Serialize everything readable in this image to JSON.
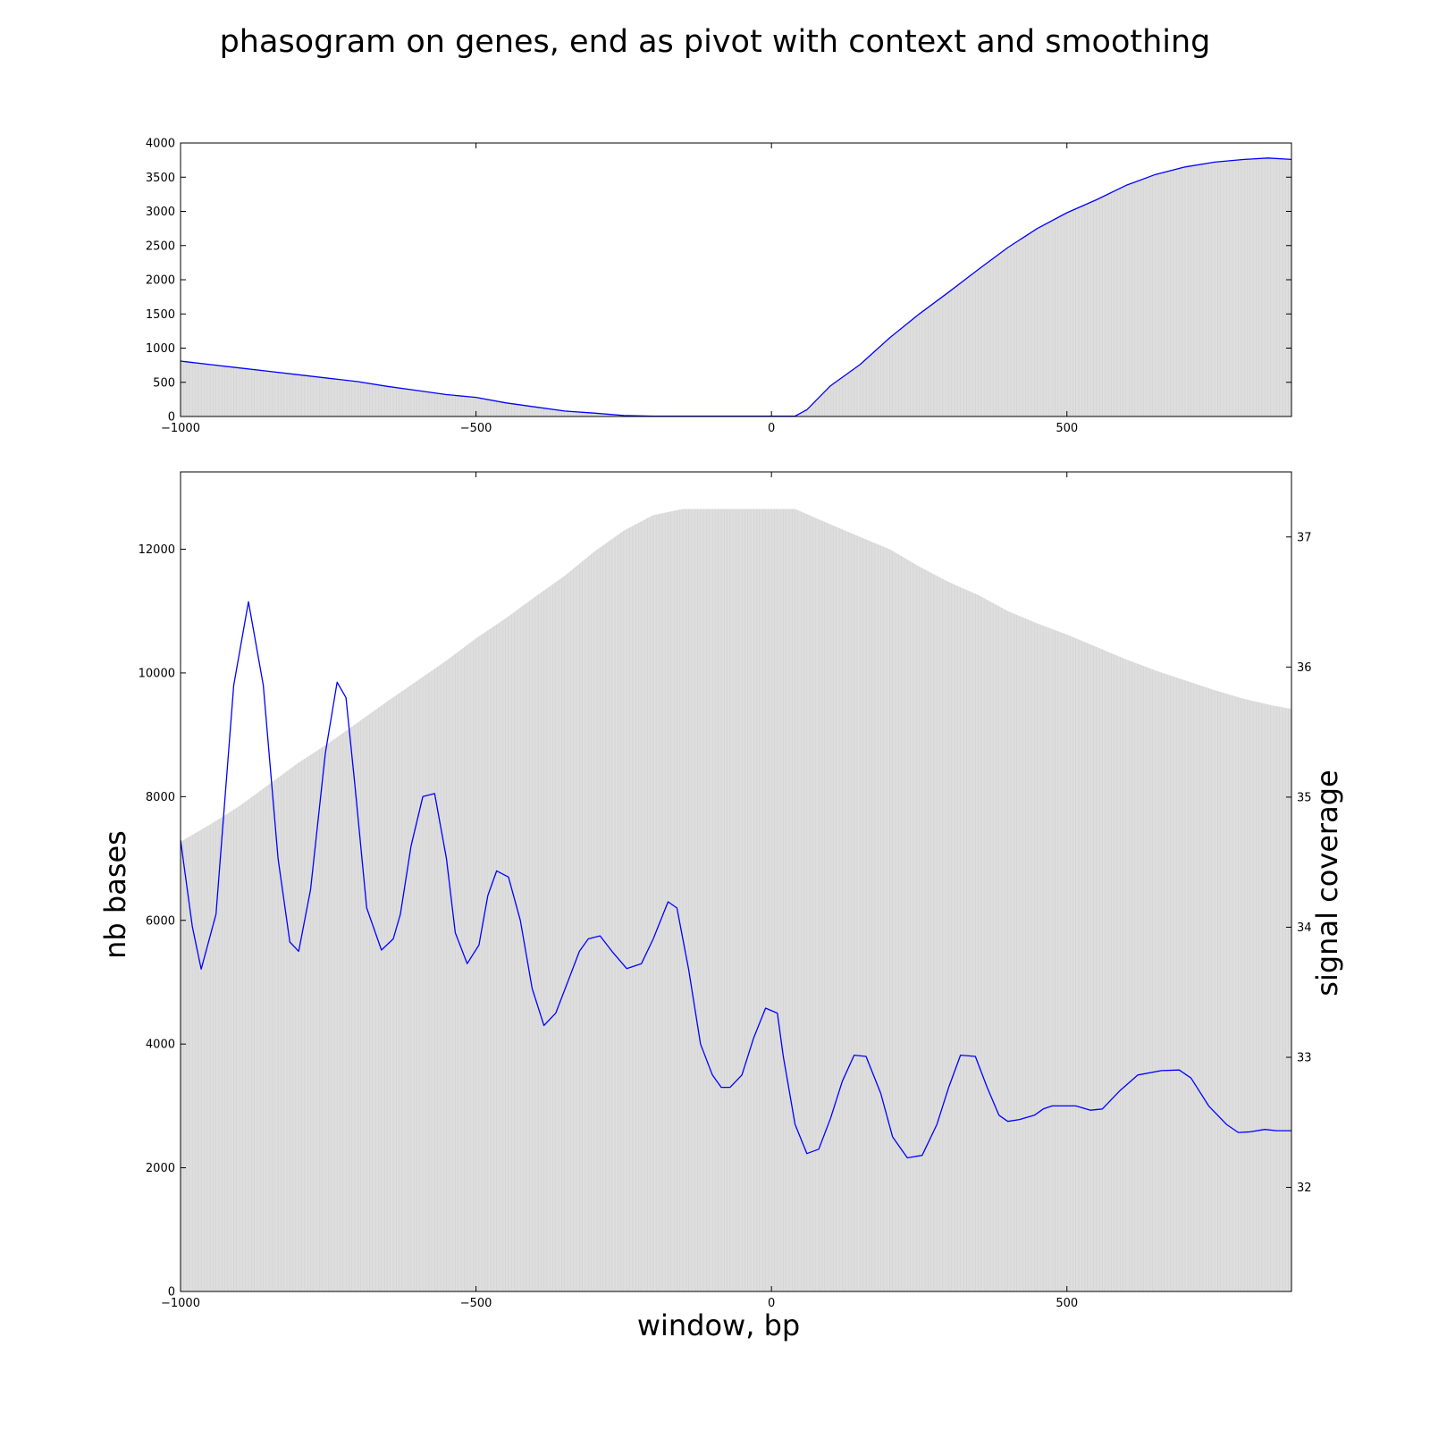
{
  "figure": {
    "title": "phasogram on genes, end as pivot with context and smoothing"
  },
  "colors": {
    "fill": "#dedede",
    "bar_edge": "#c8c8c8",
    "line": "#0000ff",
    "axes": "#000000"
  },
  "chart_data": [
    {
      "type": "area",
      "name": "top",
      "xlim": [
        -1000,
        880
      ],
      "ylim": [
        0,
        4000
      ],
      "xticks": [
        -1000,
        -500,
        0,
        500
      ],
      "xtick_labels": [
        "−1000",
        "−500",
        "0",
        "500"
      ],
      "yticks": [
        0,
        500,
        1000,
        1500,
        2000,
        2500,
        3000,
        3500,
        4000
      ],
      "ytick_labels": [
        "0",
        "500",
        "1000",
        "1500",
        "2000",
        "2500",
        "3000",
        "3500",
        "4000"
      ],
      "grid": false,
      "series": [
        {
          "style": "line",
          "x": [
            -1000,
            -990,
            -950,
            -900,
            -850,
            -800,
            -750,
            -700,
            -650,
            -600,
            -550,
            -500,
            -450,
            -400,
            -350,
            -300,
            -250,
            -200,
            -150,
            -100,
            -50,
            0,
            40,
            60,
            100,
            150,
            200,
            250,
            300,
            350,
            400,
            450,
            500,
            550,
            600,
            650,
            700,
            750,
            800,
            840,
            880
          ],
          "y": [
            810,
            800,
            760,
            710,
            660,
            610,
            560,
            510,
            440,
            380,
            320,
            280,
            200,
            140,
            80,
            50,
            15,
            5,
            5,
            5,
            5,
            5,
            5,
            100,
            450,
            760,
            1150,
            1500,
            1820,
            2150,
            2470,
            2750,
            2980,
            3170,
            3380,
            3540,
            3650,
            3720,
            3760,
            3780,
            3760
          ]
        }
      ]
    },
    {
      "type": "area",
      "name": "bottom",
      "xlabel": "window, bp",
      "ylabel": "nb bases",
      "ylabel_right": "signal coverage",
      "xlim": [
        -1000,
        880
      ],
      "ylim": [
        0,
        13250
      ],
      "ylim_right": [
        31.2,
        37.5
      ],
      "xticks": [
        -1000,
        -500,
        0,
        500
      ],
      "xtick_labels": [
        "−1000",
        "−500",
        "0",
        "500"
      ],
      "yticks": [
        0,
        2000,
        4000,
        6000,
        8000,
        10000,
        12000
      ],
      "ytick_labels": [
        "0",
        "2000",
        "4000",
        "6000",
        "8000",
        "10000",
        "12000"
      ],
      "yticks_right": [
        32,
        33,
        34,
        35,
        36,
        37
      ],
      "ytick_labels_right": [
        "32",
        "33",
        "34",
        "35",
        "36",
        "37"
      ],
      "grid": false,
      "series": [
        {
          "style": "filled-bars",
          "axis": "left",
          "x": [
            -1000,
            -950,
            -900,
            -850,
            -800,
            -750,
            -700,
            -650,
            -600,
            -550,
            -500,
            -450,
            -400,
            -350,
            -300,
            -250,
            -200,
            -150,
            -140,
            -100,
            -50,
            0,
            40,
            100,
            150,
            200,
            250,
            300,
            350,
            400,
            450,
            500,
            550,
            600,
            650,
            700,
            750,
            800,
            850,
            880
          ],
          "y": [
            7270,
            7550,
            7850,
            8200,
            8550,
            8860,
            9200,
            9540,
            9870,
            10200,
            10560,
            10880,
            11230,
            11570,
            11960,
            12300,
            12550,
            12650,
            12650,
            12650,
            12650,
            12650,
            12650,
            12400,
            12200,
            12000,
            11720,
            11470,
            11260,
            11000,
            10800,
            10620,
            10420,
            10220,
            10040,
            9880,
            9720,
            9580,
            9470,
            9420
          ]
        },
        {
          "style": "line",
          "axis": "left",
          "x": [
            -1000,
            -980,
            -965,
            -940,
            -910,
            -885,
            -860,
            -835,
            -815,
            -800,
            -780,
            -755,
            -735,
            -720,
            -705,
            -685,
            -660,
            -640,
            -628,
            -610,
            -590,
            -570,
            -550,
            -535,
            -515,
            -495,
            -480,
            -465,
            -445,
            -425,
            -405,
            -385,
            -365,
            -345,
            -325,
            -310,
            -290,
            -270,
            -245,
            -220,
            -200,
            -175,
            -160,
            -140,
            -120,
            -100,
            -85,
            -70,
            -50,
            -30,
            -10,
            10,
            20,
            40,
            60,
            80,
            100,
            120,
            140,
            160,
            185,
            205,
            230,
            255,
            280,
            300,
            320,
            345,
            365,
            385,
            400,
            420,
            445,
            460,
            475,
            495,
            515,
            540,
            560,
            590,
            620,
            660,
            690,
            710,
            740,
            770,
            790,
            810,
            835,
            855,
            880
          ],
          "y": [
            7300,
            5900,
            5210,
            6100,
            9800,
            11150,
            9800,
            7000,
            5650,
            5500,
            6500,
            8700,
            9850,
            9600,
            8200,
            6200,
            5520,
            5700,
            6100,
            7200,
            8000,
            8050,
            7000,
            5800,
            5300,
            5600,
            6400,
            6800,
            6700,
            6000,
            4900,
            4300,
            4500,
            5000,
            5500,
            5700,
            5750,
            5500,
            5220,
            5300,
            5700,
            6300,
            6200,
            5200,
            4000,
            3500,
            3300,
            3300,
            3500,
            4100,
            4580,
            4500,
            3800,
            2700,
            2230,
            2300,
            2800,
            3400,
            3820,
            3800,
            3200,
            2500,
            2160,
            2200,
            2700,
            3300,
            3820,
            3800,
            3300,
            2850,
            2750,
            2780,
            2850,
            2950,
            3000,
            3000,
            3000,
            2930,
            2950,
            3250,
            3500,
            3570,
            3580,
            3450,
            3000,
            2700,
            2570,
            2580,
            2620,
            2600,
            2600
          ]
        }
      ]
    }
  ]
}
